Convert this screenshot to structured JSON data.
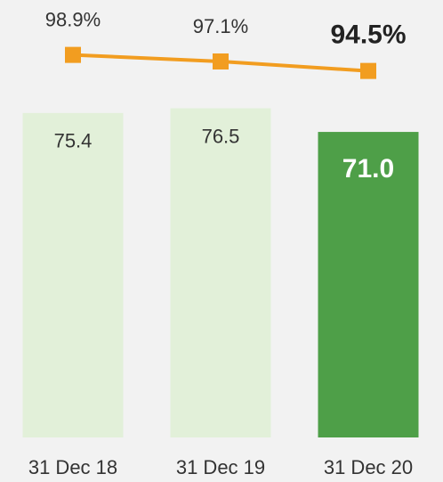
{
  "chart_data": {
    "type": "bar",
    "categories": [
      "31 Dec 18",
      "31 Dec 19",
      "31 Dec 20"
    ],
    "series": [
      {
        "type": "bar",
        "colors": [
          "#e2f0d9",
          "#e2f0d9",
          "#4e9f48"
        ],
        "values": [
          75.4,
          76.5,
          71.0
        ],
        "value_labels": [
          "75.4",
          "76.5",
          "71.0"
        ]
      },
      {
        "type": "line",
        "axis": "y2",
        "color": "#f29d20",
        "values": [
          98.9,
          97.1,
          94.5
        ],
        "value_labels": [
          "98.9%",
          "97.1%",
          "94.5%"
        ]
      }
    ],
    "ylim": [
      0,
      100
    ],
    "y2lim": [
      -6,
      112
    ]
  }
}
